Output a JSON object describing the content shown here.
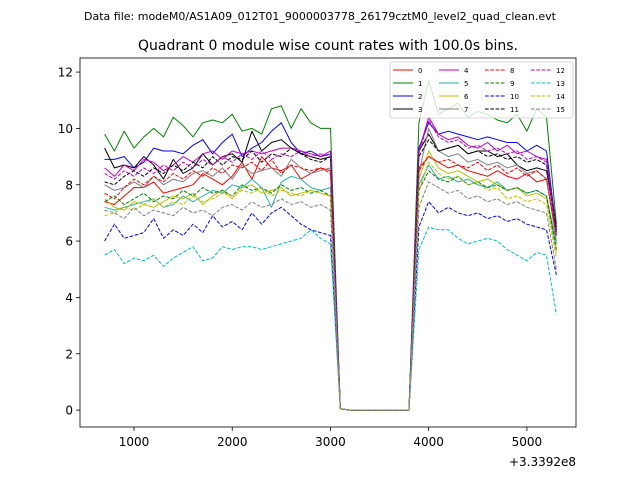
{
  "suptitle": "Data file: modeM0/AS1A09_012T01_9000003778_26179cztM0_level2_quad_clean.evt",
  "chart_data": {
    "type": "line",
    "title": "Quadrant 0 module wise count rates with 100.0s bins.",
    "xlabel": "",
    "ylabel": "",
    "x_offset_label": "+3.3392e8",
    "xlim": [
      450,
      5500
    ],
    "ylim": [
      -0.6,
      12.5
    ],
    "xticks": [
      1000,
      2000,
      3000,
      4000,
      5000
    ],
    "xtick_labels": [
      "1000",
      "2000",
      "3000",
      "4000",
      "5000"
    ],
    "yticks": [
      0,
      2,
      4,
      6,
      8,
      10,
      12
    ],
    "ytick_labels": [
      "0",
      "2",
      "4",
      "6",
      "8",
      "10",
      "12"
    ],
    "legend_position": "upper-right",
    "x": [
      700,
      800,
      900,
      1000,
      1100,
      1200,
      1300,
      1400,
      1500,
      1600,
      1700,
      1800,
      1900,
      2000,
      2100,
      2200,
      2300,
      2400,
      2500,
      2600,
      2700,
      2800,
      2900,
      3000,
      3100,
      3200,
      3300,
      3400,
      3500,
      3600,
      3700,
      3800,
      3900,
      4000,
      4100,
      4200,
      4300,
      4400,
      4500,
      4600,
      4700,
      4800,
      4900,
      5000,
      5100,
      5200,
      5300
    ],
    "series": [
      {
        "name": "0",
        "color": "#ff0000",
        "dashed": false,
        "values": [
          7.4,
          7.3,
          7.6,
          7.9,
          7.9,
          8.1,
          7.7,
          7.8,
          7.9,
          8.0,
          8.4,
          8.2,
          8.0,
          8.3,
          8.8,
          8.2,
          9.0,
          8.6,
          8.5,
          8.7,
          8.2,
          8.4,
          8.6,
          8.5,
          0.05,
          0,
          0,
          0,
          0,
          0,
          0,
          0,
          8.6,
          9.0,
          8.8,
          8.6,
          8.7,
          8.5,
          8.4,
          8.3,
          8.5,
          8.3,
          8.2,
          8.4,
          8.1,
          8.2,
          6.2
        ]
      },
      {
        "name": "1",
        "color": "#008000",
        "dashed": false,
        "values": [
          9.8,
          9.2,
          9.9,
          9.3,
          9.7,
          10.0,
          9.7,
          10.4,
          10.1,
          9.7,
          10.2,
          10.3,
          10.2,
          10.5,
          9.9,
          10.0,
          9.8,
          10.7,
          10.8,
          10.0,
          10.7,
          10.2,
          10.0,
          10.0,
          0.05,
          0,
          0,
          0,
          0,
          0,
          0,
          0,
          10.2,
          11.7,
          10.5,
          10.7,
          10.9,
          10.4,
          10.6,
          10.5,
          10.3,
          10.2,
          10.5,
          9.9,
          10.7,
          10.4,
          6.6
        ]
      },
      {
        "name": "2",
        "color": "#0000ff",
        "dashed": false,
        "values": [
          8.9,
          8.9,
          9.0,
          8.6,
          8.8,
          9.3,
          9.2,
          9.2,
          9.1,
          9.4,
          9.6,
          9.1,
          9.5,
          9.8,
          9.0,
          9.3,
          9.5,
          9.9,
          10.2,
          9.5,
          9.1,
          9.2,
          9.0,
          9.1,
          0.05,
          0,
          0,
          0,
          0,
          0,
          0,
          0,
          9.3,
          10.2,
          9.8,
          9.9,
          9.8,
          9.7,
          9.6,
          9.7,
          9.6,
          9.5,
          9.5,
          9.2,
          9.4,
          9.2,
          6.4
        ]
      },
      {
        "name": "3",
        "color": "#000000",
        "dashed": false,
        "values": [
          9.3,
          8.6,
          8.7,
          8.6,
          9.0,
          8.7,
          8.2,
          8.9,
          8.4,
          8.6,
          9.1,
          8.7,
          9.0,
          9.1,
          8.8,
          9.9,
          9.2,
          9.5,
          9.6,
          9.3,
          9.1,
          9.0,
          8.9,
          9.0,
          0.05,
          0,
          0,
          0,
          0,
          0,
          0,
          0,
          9.2,
          9.8,
          9.2,
          9.3,
          9.4,
          9.1,
          9.2,
          9.2,
          9.0,
          9.1,
          8.7,
          8.5,
          8.6,
          8.5,
          6.5
        ]
      },
      {
        "name": "4",
        "color": "#bf00bf",
        "dashed": false,
        "values": [
          8.6,
          8.3,
          8.7,
          8.5,
          8.9,
          8.8,
          8.5,
          8.7,
          9.0,
          8.8,
          9.1,
          9.2,
          8.9,
          9.2,
          9.1,
          9.2,
          9.1,
          9.2,
          9.3,
          9.3,
          9.2,
          9.1,
          9.0,
          9.2,
          0.05,
          0,
          0,
          0,
          0,
          0,
          0,
          0,
          9.2,
          10.4,
          9.8,
          9.6,
          9.7,
          9.4,
          9.3,
          9.5,
          9.2,
          9.4,
          9.1,
          9.2,
          9.0,
          8.9,
          6.3
        ]
      },
      {
        "name": "5",
        "color": "#20b2aa",
        "dashed": false,
        "values": [
          7.2,
          7.1,
          7.2,
          7.3,
          7.4,
          7.5,
          7.2,
          7.3,
          7.6,
          7.4,
          7.6,
          7.8,
          7.7,
          8.0,
          7.9,
          8.2,
          7.9,
          7.2,
          8.1,
          8.3,
          8.2,
          7.9,
          7.8,
          7.9,
          0.05,
          0,
          0,
          0,
          0,
          0,
          0,
          0,
          8.0,
          8.7,
          8.2,
          8.3,
          8.1,
          8.2,
          8.0,
          7.9,
          8.1,
          7.8,
          7.9,
          7.7,
          7.8,
          7.6,
          5.9
        ]
      },
      {
        "name": "6",
        "color": "#bfbf00",
        "dashed": false,
        "values": [
          7.5,
          7.2,
          7.1,
          7.4,
          7.3,
          7.2,
          7.4,
          7.6,
          7.5,
          7.7,
          7.3,
          7.6,
          7.8,
          7.5,
          7.9,
          8.0,
          7.7,
          7.8,
          7.9,
          7.6,
          7.7,
          7.8,
          7.7,
          7.6,
          0.05,
          0,
          0,
          0,
          0,
          0,
          0,
          0,
          8.2,
          9.2,
          8.6,
          8.4,
          8.5,
          8.3,
          8.1,
          8.2,
          8.0,
          7.8,
          7.9,
          7.6,
          7.7,
          7.5,
          5.6
        ]
      },
      {
        "name": "7",
        "color": "#808080",
        "dashed": false,
        "values": [
          8.0,
          7.8,
          7.9,
          8.1,
          7.9,
          8.3,
          8.0,
          8.2,
          8.1,
          8.4,
          8.5,
          8.3,
          8.6,
          8.2,
          8.7,
          8.4,
          8.5,
          8.6,
          8.3,
          8.9,
          8.6,
          8.4,
          8.5,
          8.6,
          0.05,
          0,
          0,
          0,
          0,
          0,
          0,
          0,
          8.4,
          10.0,
          9.2,
          9.0,
          9.1,
          8.8,
          8.9,
          8.7,
          8.8,
          8.6,
          8.7,
          8.4,
          8.5,
          8.2,
          6.0
        ]
      },
      {
        "name": "8",
        "color": "#ff0000",
        "dashed": true,
        "values": [
          7.7,
          7.5,
          7.9,
          8.2,
          8.0,
          8.3,
          8.1,
          8.4,
          8.2,
          8.5,
          8.3,
          8.6,
          8.4,
          8.7,
          8.6,
          8.8,
          8.5,
          8.9,
          8.4,
          8.7,
          8.6,
          8.5,
          8.6,
          8.4,
          0.05,
          0,
          0,
          0,
          0,
          0,
          0,
          0,
          8.5,
          9.0,
          8.8,
          8.9,
          8.7,
          8.6,
          8.8,
          8.5,
          8.7,
          8.4,
          8.6,
          8.3,
          8.5,
          8.2,
          6.2
        ]
      },
      {
        "name": "9",
        "color": "#008000",
        "dashed": true,
        "values": [
          7.4,
          7.6,
          7.3,
          7.5,
          7.7,
          7.4,
          7.6,
          7.5,
          7.8,
          7.6,
          7.9,
          7.7,
          7.8,
          7.6,
          8.0,
          7.8,
          7.9,
          7.7,
          8.0,
          7.8,
          7.9,
          7.7,
          7.8,
          7.6,
          0.05,
          0,
          0,
          0,
          0,
          0,
          0,
          0,
          7.8,
          8.5,
          8.2,
          8.1,
          8.3,
          8.0,
          8.1,
          7.9,
          8.0,
          7.8,
          7.9,
          7.7,
          7.8,
          7.6,
          5.7
        ]
      },
      {
        "name": "10",
        "color": "#0000ff",
        "dashed": true,
        "values": [
          6.0,
          6.6,
          6.1,
          6.2,
          6.3,
          6.8,
          6.1,
          6.4,
          6.2,
          6.6,
          6.3,
          6.9,
          6.5,
          6.7,
          6.4,
          7.0,
          6.6,
          7.0,
          7.2,
          6.9,
          6.6,
          6.4,
          6.3,
          6.2,
          0.05,
          0,
          0,
          0,
          0,
          0,
          0,
          0,
          6.5,
          7.4,
          7.0,
          7.2,
          7.0,
          6.9,
          7.0,
          6.8,
          6.9,
          6.7,
          6.8,
          6.6,
          6.5,
          6.4,
          4.8
        ]
      },
      {
        "name": "11",
        "color": "#000000",
        "dashed": true,
        "values": [
          8.1,
          8.0,
          8.3,
          8.5,
          8.3,
          8.6,
          8.4,
          8.7,
          8.5,
          8.8,
          8.6,
          9.0,
          8.7,
          9.0,
          8.9,
          9.2,
          8.8,
          9.1,
          9.0,
          9.3,
          9.1,
          8.9,
          8.8,
          9.0,
          0.05,
          0,
          0,
          0,
          0,
          0,
          0,
          0,
          9.0,
          9.6,
          9.2,
          9.3,
          9.4,
          9.1,
          9.2,
          9.0,
          9.1,
          8.9,
          9.0,
          8.8,
          8.9,
          8.7,
          6.3
        ]
      },
      {
        "name": "12",
        "color": "#bf00bf",
        "dashed": true,
        "values": [
          8.4,
          8.2,
          8.5,
          8.3,
          8.6,
          8.4,
          8.7,
          8.5,
          8.8,
          8.6,
          8.9,
          8.7,
          9.0,
          8.8,
          9.1,
          8.9,
          9.2,
          8.9,
          9.1,
          9.0,
          9.2,
          9.0,
          9.1,
          9.0,
          0.05,
          0,
          0,
          0,
          0,
          0,
          0,
          0,
          9.1,
          10.3,
          9.7,
          9.5,
          9.6,
          9.3,
          9.4,
          9.2,
          9.3,
          9.1,
          9.2,
          8.9,
          9.0,
          8.8,
          6.2
        ]
      },
      {
        "name": "13",
        "color": "#00bfbf",
        "dashed": true,
        "values": [
          5.5,
          5.7,
          5.2,
          5.4,
          5.3,
          5.5,
          5.1,
          5.4,
          5.6,
          5.8,
          5.3,
          5.4,
          5.8,
          5.7,
          5.8,
          5.8,
          5.7,
          5.8,
          5.9,
          6.0,
          6.1,
          6.4,
          6.1,
          5.9,
          0.05,
          0,
          0,
          0,
          0,
          0,
          0,
          0,
          5.7,
          6.5,
          6.4,
          6.4,
          6.1,
          5.9,
          6.0,
          6.1,
          6.0,
          5.7,
          5.5,
          5.3,
          5.6,
          5.5,
          3.4
        ]
      },
      {
        "name": "14",
        "color": "#bfbf00",
        "dashed": true,
        "values": [
          6.9,
          7.0,
          7.2,
          7.1,
          7.3,
          7.5,
          7.2,
          7.4,
          7.3,
          7.6,
          7.4,
          7.5,
          7.7,
          7.6,
          7.8,
          7.7,
          7.9,
          7.6,
          7.8,
          7.7,
          7.6,
          7.8,
          7.7,
          7.6,
          0.05,
          0,
          0,
          0,
          0,
          0,
          0,
          0,
          7.8,
          8.8,
          8.4,
          8.2,
          8.3,
          8.0,
          8.1,
          7.8,
          7.9,
          7.5,
          7.6,
          7.4,
          7.5,
          7.3,
          5.4
        ]
      },
      {
        "name": "15",
        "color": "#808080",
        "dashed": true,
        "values": [
          7.1,
          7.0,
          6.8,
          7.2,
          6.9,
          7.1,
          7.0,
          6.9,
          7.2,
          7.0,
          7.1,
          6.9,
          7.2,
          7.3,
          7.1,
          7.4,
          7.2,
          7.3,
          7.5,
          7.3,
          7.4,
          7.2,
          7.3,
          7.1,
          0.05,
          0,
          0,
          0,
          0,
          0,
          0,
          0,
          7.2,
          8.1,
          7.9,
          7.7,
          7.8,
          7.5,
          7.6,
          7.4,
          7.5,
          7.3,
          7.4,
          7.2,
          7.1,
          7.0,
          5.0
        ]
      }
    ]
  }
}
